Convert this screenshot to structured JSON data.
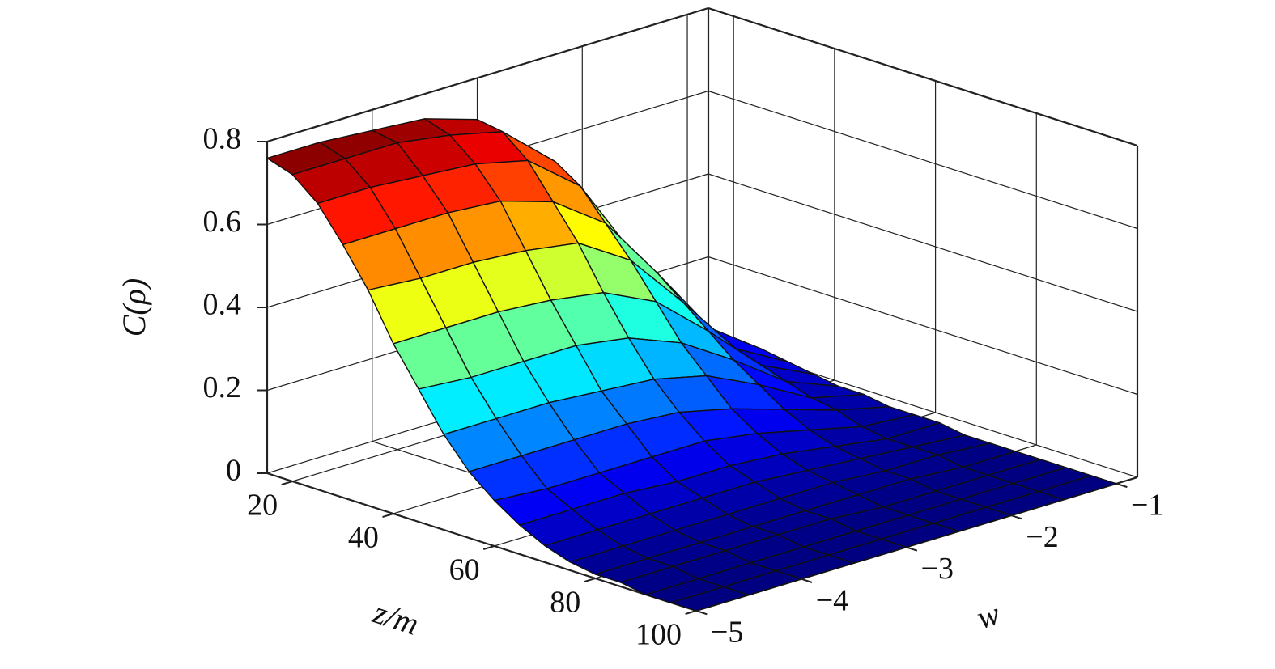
{
  "chart_data": {
    "type": "surface",
    "colormap": "jet",
    "grid": true,
    "xlabel": "z/m",
    "ylabel": "w",
    "zlabel": "C(ρ)",
    "xlim": [
      15,
      100
    ],
    "xticks": [
      20,
      40,
      60,
      80,
      100
    ],
    "ylim": [
      -5,
      -0.8
    ],
    "yticks": [
      {
        "value": -5,
        "label": "−5"
      },
      {
        "value": -4,
        "label": "−4"
      },
      {
        "value": -3,
        "label": "−3"
      },
      {
        "value": -2,
        "label": "−2"
      },
      {
        "value": -1,
        "label": "−1"
      }
    ],
    "zlim": [
      0,
      0.8
    ],
    "zticks": [
      0,
      0.2,
      0.4,
      0.6,
      0.8
    ],
    "x": [
      15,
      20,
      25,
      30,
      35,
      40,
      45,
      50,
      55,
      60,
      65,
      70,
      75,
      80,
      85,
      90,
      95,
      100
    ],
    "y": [
      -5,
      -4.5,
      -4,
      -3.5,
      -3,
      -2.5,
      -2,
      -1.5,
      -1
    ],
    "values": [
      [
        0.76,
        0.76,
        0.75,
        0.74,
        0.7,
        0.59,
        0.38,
        0.17,
        0.06
      ],
      [
        0.74,
        0.74,
        0.74,
        0.72,
        0.69,
        0.58,
        0.37,
        0.17,
        0.06
      ],
      [
        0.69,
        0.69,
        0.68,
        0.67,
        0.64,
        0.54,
        0.34,
        0.15,
        0.05
      ],
      [
        0.61,
        0.61,
        0.61,
        0.6,
        0.56,
        0.47,
        0.31,
        0.14,
        0.05
      ],
      [
        0.52,
        0.51,
        0.51,
        0.5,
        0.48,
        0.4,
        0.26,
        0.11,
        0.04
      ],
      [
        0.41,
        0.41,
        0.41,
        0.4,
        0.38,
        0.32,
        0.21,
        0.09,
        0.03
      ],
      [
        0.32,
        0.31,
        0.31,
        0.31,
        0.29,
        0.24,
        0.16,
        0.07,
        0.02
      ],
      [
        0.23,
        0.23,
        0.23,
        0.22,
        0.21,
        0.18,
        0.12,
        0.05,
        0.02
      ],
      [
        0.16,
        0.16,
        0.16,
        0.16,
        0.15,
        0.12,
        0.08,
        0.04,
        0.01
      ],
      [
        0.11,
        0.1,
        0.1,
        0.1,
        0.1,
        0.08,
        0.05,
        0.02,
        0.01
      ],
      [
        0.07,
        0.07,
        0.07,
        0.06,
        0.06,
        0.05,
        0.03,
        0.01,
        0.01
      ],
      [
        0.04,
        0.04,
        0.04,
        0.04,
        0.04,
        0.03,
        0.02,
        0.01,
        0
      ],
      [
        0.02,
        0.02,
        0.02,
        0.02,
        0.02,
        0.02,
        0.01,
        0.01,
        0
      ],
      [
        0.01,
        0.01,
        0.01,
        0.01,
        0.01,
        0.01,
        0.01,
        0,
        0
      ],
      [
        0.01,
        0.01,
        0.01,
        0.01,
        0.01,
        0,
        0,
        0,
        0
      ],
      [
        0,
        0,
        0,
        0,
        0,
        0,
        0,
        0,
        0
      ],
      [
        0,
        0,
        0,
        0,
        0,
        0,
        0,
        0,
        0
      ],
      [
        0,
        0,
        0,
        0,
        0,
        0,
        0,
        0,
        0
      ]
    ]
  }
}
